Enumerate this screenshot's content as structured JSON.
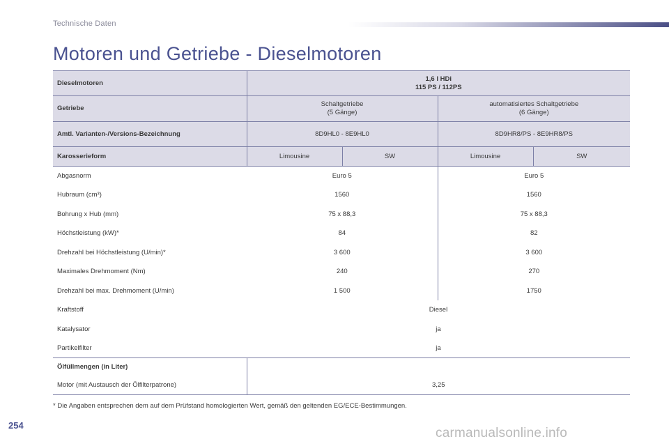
{
  "section_label": "Technische Daten",
  "title": "Motoren und Getriebe - Dieselmotoren",
  "header": {
    "engine_label": "Dieselmotoren",
    "engine_line1": "1,6 l HDi",
    "engine_line2": "115 PS / 112PS",
    "gearbox_label": "Getriebe",
    "gearbox_manual_line1": "Schaltgetriebe",
    "gearbox_manual_line2": "(5 Gänge)",
    "gearbox_auto_line1": "automatisiertes Schaltgetriebe",
    "gearbox_auto_line2": "(6 Gänge)",
    "variant_label": "Amtl. Varianten-/Versions-Bezeichnung",
    "variant_manual": "8D9HL0 - 8E9HL0",
    "variant_auto": "8D9HR8/PS - 8E9HR8/PS",
    "body_label": "Karosserieform",
    "body_types": [
      "Limousine",
      "SW",
      "Limousine",
      "SW"
    ]
  },
  "rows": [
    {
      "label": "Abgasnorm",
      "manual": "Euro 5",
      "auto": "Euro 5"
    },
    {
      "label": "Hubraum (cm³)",
      "manual": "1560",
      "auto": "1560"
    },
    {
      "label": "Bohrung x Hub (mm)",
      "manual": "75 x 88,3",
      "auto": "75 x 88,3"
    },
    {
      "label": "Höchstleistung (kW)*",
      "manual": "84",
      "auto": "82"
    },
    {
      "label": "Drehzahl bei Höchstleistung (U/min)*",
      "manual": "3 600",
      "auto": "3 600"
    },
    {
      "label": "Maximales Drehmoment (Nm)",
      "manual": "240",
      "auto": "270"
    },
    {
      "label": "Drehzahl bei max. Drehmoment (U/min)",
      "manual": "1 500",
      "auto": "1750"
    }
  ],
  "shared_rows": [
    {
      "label": "Kraftstoff",
      "value": "Diesel"
    },
    {
      "label": "Katalysator",
      "value": "ja"
    },
    {
      "label": "Partikelfilter",
      "value": "ja"
    }
  ],
  "oil": {
    "heading": "Ölfüllmengen (in Liter)",
    "label": "Motor (mit Austausch der Ölfilterpatrone)",
    "value": "3,25"
  },
  "footnote": "* Die Angaben entsprechen dem auf dem Prüfstand homologierten Wert, gemäß den geltenden EG/ECE-Bestimmungen.",
  "page_number": "254",
  "watermark": "carmanualsonline.info",
  "colors": {
    "accent": "#4a5290",
    "header_fill": "#dcdbe7",
    "rule": "#7c7fa6"
  }
}
